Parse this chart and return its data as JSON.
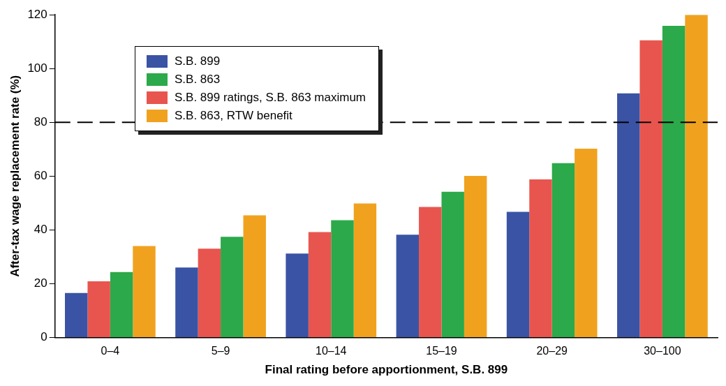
{
  "chart_data": {
    "type": "bar",
    "xlabel": "Final rating before apportionment, S.B. 899",
    "ylabel": "After-tax wage replacement rate (%)",
    "categories": [
      "0–4",
      "5–9",
      "10–14",
      "15–19",
      "20–29",
      "30–100"
    ],
    "series": [
      {
        "name": "S.B. 899",
        "color": "#3a53a4",
        "values": [
          16.5,
          26,
          31.2,
          38.2,
          46.7,
          90.8
        ]
      },
      {
        "name": "S.B. 863",
        "color": "#2ca94a",
        "values": [
          24.3,
          37.4,
          43.6,
          54.2,
          64.8,
          115.9
        ]
      },
      {
        "name": "S.B. 899 ratings, S.B. 863 maximum",
        "color": "#e8554e",
        "values": [
          20.9,
          33,
          39.2,
          48.5,
          58.8,
          110.5
        ]
      },
      {
        "name": "S.B. 863, RTW benefit",
        "color": "#f0a21f",
        "values": [
          34,
          45.4,
          49.8,
          60.1,
          70.2,
          120
        ]
      }
    ],
    "ylim": [
      0,
      120
    ],
    "yticks": [
      0,
      20,
      40,
      60,
      80,
      100,
      120
    ],
    "grid": false,
    "legend": "top left",
    "ref_lines": [
      {
        "axis": "y",
        "value": 80,
        "color": "#000000",
        "line_style": "dashed"
      }
    ]
  }
}
